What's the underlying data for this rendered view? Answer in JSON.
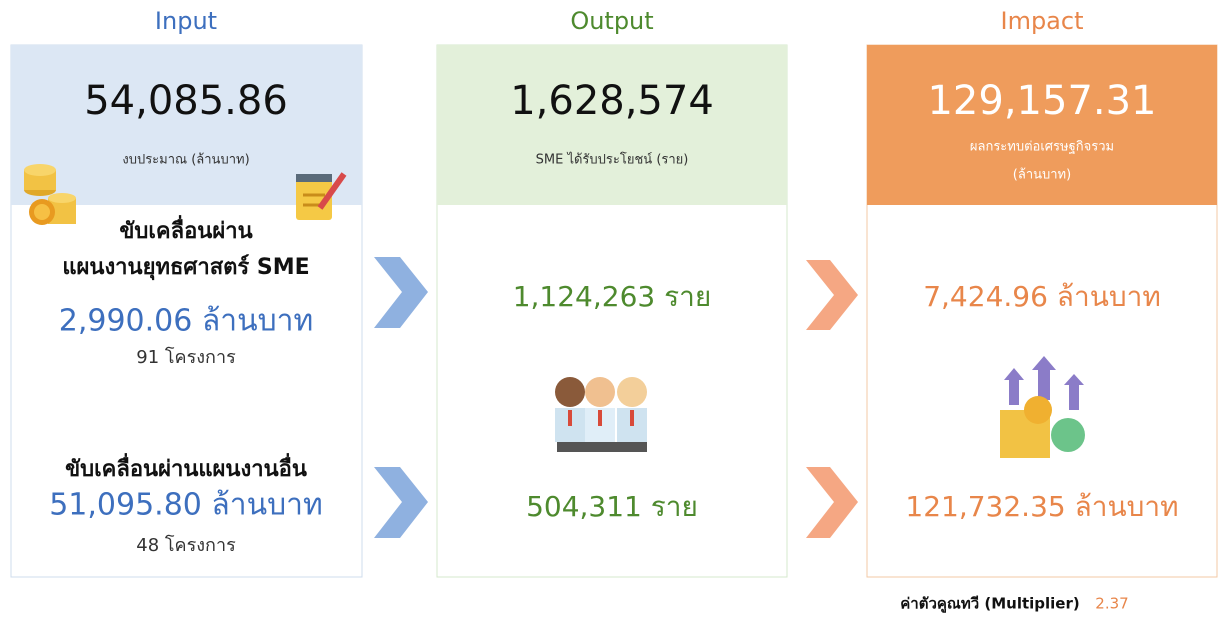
{
  "input": {
    "heading": "Input",
    "total": "54,085.86",
    "total_label": "งบประมาณ (ล้านบาท)",
    "group1": {
      "title_line1": "ขับเคลื่อนผ่าน",
      "title_line2": "แผนงานยุทธศาสตร์ SME",
      "amount": "2,990.06 ล้านบาท",
      "projects": "91 โครงการ"
    },
    "group2": {
      "title": "ขับเคลื่อนผ่านแผนงานอื่น",
      "amount": "51,095.80 ล้านบาท",
      "projects": "48 โครงการ"
    }
  },
  "output": {
    "heading": "Output",
    "total": "1,628,574",
    "total_label": "SME ได้รับประโยชน์ (ราย)",
    "value1": "1,124,263 ราย",
    "value2": "504,311 ราย"
  },
  "impact": {
    "heading": "Impact",
    "total": "129,157.31",
    "total_label_line1": "ผลกระทบต่อเศรษฐกิจรวม",
    "total_label_line2": "(ล้านบาท)",
    "value1": "7,424.96 ล้านบาท",
    "value2": "121,732.35 ล้านบาท"
  },
  "footer": {
    "label": "ค่าตัวคูณทวี (Multiplier)",
    "value": "2.37"
  }
}
